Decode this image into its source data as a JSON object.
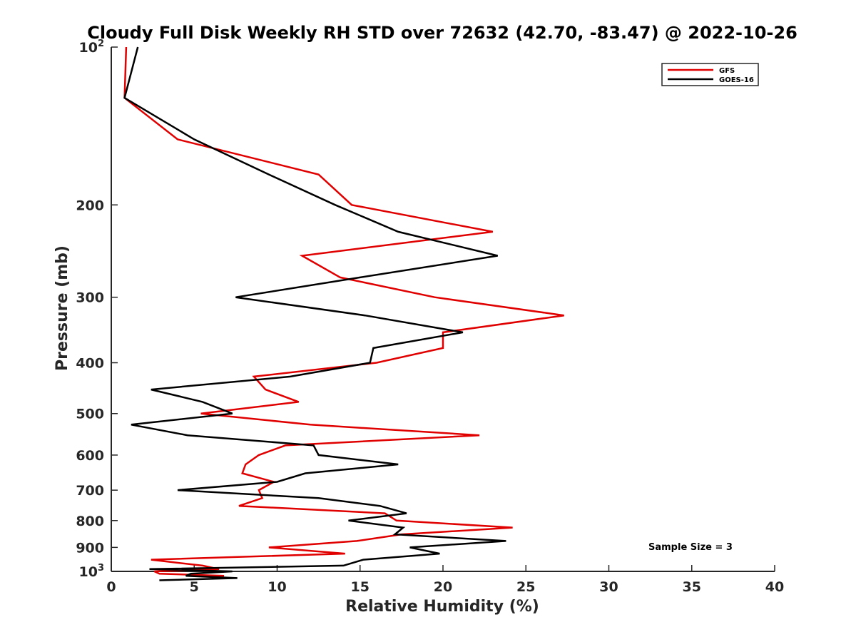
{
  "chart_data": {
    "type": "line",
    "title": "Cloudy Full Disk Weekly RH STD over 72632 (42.70, -83.47) @ 2022-10-26",
    "xlabel": "Relative Humidity (%)",
    "ylabel": "Pressure (mb)",
    "xlim": [
      0,
      40
    ],
    "ylim": [
      100,
      1000
    ],
    "y_scale": "log",
    "y_reversed": true,
    "x_ticks": [
      "0",
      "5",
      "10",
      "15",
      "20",
      "25",
      "30",
      "35",
      "40"
    ],
    "y_ticks": [
      {
        "value": 100,
        "base": "10",
        "exp": "2"
      },
      {
        "value": 200,
        "label": "200"
      },
      {
        "value": 300,
        "label": "300"
      },
      {
        "value": 400,
        "label": "400"
      },
      {
        "value": 500,
        "label": "500"
      },
      {
        "value": 600,
        "label": "600"
      },
      {
        "value": 700,
        "label": "700"
      },
      {
        "value": 800,
        "label": "800"
      },
      {
        "value": 900,
        "label": "900"
      },
      {
        "value": 1000,
        "base": "10",
        "exp": "3"
      }
    ],
    "grid": false,
    "legend_position": "top-right",
    "annotation": "Sample Size = 3",
    "series": [
      {
        "name": "GFS",
        "color": "#e00000",
        "points": [
          [
            0.9,
            100
          ],
          [
            0.8,
            125
          ],
          [
            4.0,
            150
          ],
          [
            12.5,
            175
          ],
          [
            14.5,
            200
          ],
          [
            23.0,
            225
          ],
          [
            11.5,
            250
          ],
          [
            13.8,
            275
          ],
          [
            19.5,
            300
          ],
          [
            27.3,
            325
          ],
          [
            20.0,
            350
          ],
          [
            20.0,
            375
          ],
          [
            16.0,
            400
          ],
          [
            8.6,
            425
          ],
          [
            9.3,
            450
          ],
          [
            11.3,
            475
          ],
          [
            5.4,
            500
          ],
          [
            12.0,
            525
          ],
          [
            22.2,
            550
          ],
          [
            10.5,
            575
          ],
          [
            8.9,
            600
          ],
          [
            8.1,
            625
          ],
          [
            7.9,
            650
          ],
          [
            9.8,
            675
          ],
          [
            8.9,
            700
          ],
          [
            9.1,
            725
          ],
          [
            7.7,
            750
          ],
          [
            16.5,
            775
          ],
          [
            17.2,
            800
          ],
          [
            24.2,
            825
          ],
          [
            17.5,
            850
          ],
          [
            14.8,
            875
          ],
          [
            9.5,
            900
          ],
          [
            14.1,
            925
          ],
          [
            2.4,
            950
          ],
          [
            5.5,
            975
          ],
          [
            6.5,
            990
          ],
          [
            2.6,
            1000
          ],
          [
            2.9,
            1010
          ],
          [
            6.8,
            1020
          ]
        ]
      },
      {
        "name": "GOES-16",
        "color": "#000000",
        "points": [
          [
            1.6,
            100
          ],
          [
            0.8,
            125
          ],
          [
            5.0,
            150
          ],
          [
            9.5,
            175
          ],
          [
            13.5,
            200
          ],
          [
            17.3,
            225
          ],
          [
            23.3,
            250
          ],
          [
            15.0,
            275
          ],
          [
            7.5,
            300
          ],
          [
            15.3,
            325
          ],
          [
            21.2,
            350
          ],
          [
            15.8,
            375
          ],
          [
            15.6,
            400
          ],
          [
            10.8,
            425
          ],
          [
            2.4,
            450
          ],
          [
            5.5,
            475
          ],
          [
            7.3,
            500
          ],
          [
            1.2,
            525
          ],
          [
            4.6,
            550
          ],
          [
            12.2,
            575
          ],
          [
            12.5,
            600
          ],
          [
            17.3,
            625
          ],
          [
            11.7,
            650
          ],
          [
            10.0,
            675
          ],
          [
            4.0,
            700
          ],
          [
            12.5,
            725
          ],
          [
            16.2,
            750
          ],
          [
            17.8,
            775
          ],
          [
            14.3,
            800
          ],
          [
            17.6,
            825
          ],
          [
            17.1,
            850
          ],
          [
            23.8,
            875
          ],
          [
            18.0,
            900
          ],
          [
            19.8,
            925
          ],
          [
            15.2,
            950
          ],
          [
            14.0,
            975
          ],
          [
            2.3,
            990
          ],
          [
            7.3,
            1000
          ],
          [
            4.8,
            1010
          ],
          [
            4.5,
            1020
          ],
          [
            7.6,
            1030
          ],
          [
            2.9,
            1040
          ]
        ]
      }
    ]
  }
}
